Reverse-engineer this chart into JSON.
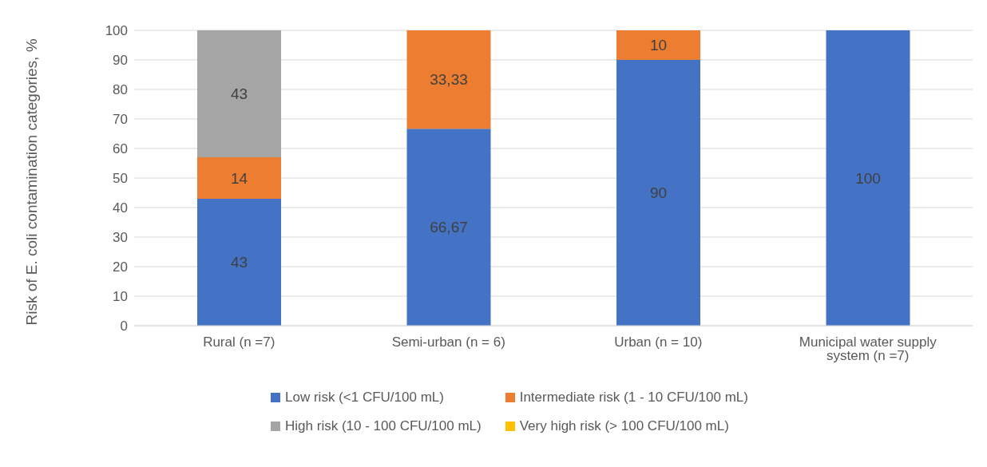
{
  "chart_data": {
    "type": "bar",
    "stacked": true,
    "ylabel": "Risk of E. coli contamination categories, %",
    "categories": [
      "Rural (n =7)",
      "Semi-urban (n = 6)",
      "Urban (n = 10)",
      "Municipal water supply system (n =7)"
    ],
    "series": [
      {
        "name": "Low risk (<1 CFU/100 mL)",
        "color": "#4472c4",
        "values": [
          43,
          66.67,
          90,
          100
        ],
        "value_labels": [
          "43",
          "66,67",
          "90",
          "100"
        ]
      },
      {
        "name": "Intermediate risk (1 - 10 CFU/100 mL)",
        "color": "#ed7d31",
        "values": [
          14,
          33.33,
          10,
          null
        ],
        "value_labels": [
          "14",
          "33,33",
          "10",
          null
        ]
      },
      {
        "name": "High risk (10 - 100 CFU/100 mL)",
        "color": "#a5a5a5",
        "values": [
          43,
          null,
          null,
          null
        ],
        "value_labels": [
          "43",
          null,
          null,
          null
        ]
      },
      {
        "name": "Very high risk (> 100 CFU/100 mL)",
        "color": "#ffc000",
        "values": [
          null,
          null,
          null,
          null
        ],
        "value_labels": [
          null,
          null,
          null,
          null
        ]
      }
    ],
    "ylim": [
      0,
      100
    ],
    "yticks": [
      0,
      10,
      20,
      30,
      40,
      50,
      60,
      70,
      80,
      90,
      100
    ],
    "grid": "y",
    "legend": "bottom"
  }
}
